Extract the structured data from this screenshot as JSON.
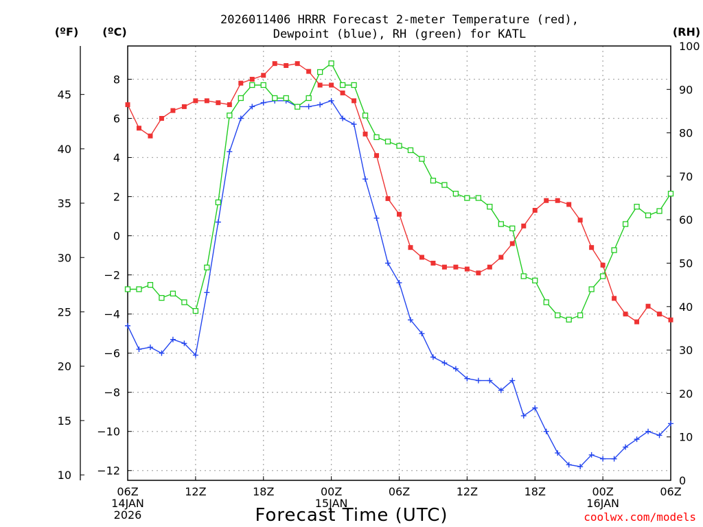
{
  "chart_data": {
    "type": "line",
    "title_lines": [
      "2026011406 HRRR Forecast 2-meter Temperature (red),",
      "Dewpoint (blue), RH (green) for KATL"
    ],
    "xlabel": "Forecast Time (UTC)",
    "credit": "coolwx.com/models",
    "units": {
      "fahrenheit": "(ºF)",
      "celsius": "(ºC)",
      "rh": "(RH)"
    },
    "x_range_hours": [
      0,
      48
    ],
    "x_ticks": [
      {
        "hour": 0,
        "lines": [
          "06Z",
          "14JAN",
          "2026"
        ]
      },
      {
        "hour": 6,
        "lines": [
          "12Z"
        ]
      },
      {
        "hour": 12,
        "lines": [
          "18Z"
        ]
      },
      {
        "hour": 18,
        "lines": [
          "00Z",
          "15JAN"
        ]
      },
      {
        "hour": 24,
        "lines": [
          "06Z"
        ]
      },
      {
        "hour": 30,
        "lines": [
          "12Z"
        ]
      },
      {
        "hour": 36,
        "lines": [
          "18Z"
        ]
      },
      {
        "hour": 42,
        "lines": [
          "00Z",
          "16JAN"
        ]
      },
      {
        "hour": 48,
        "lines": [
          "06Z"
        ]
      }
    ],
    "celsius_axis": {
      "range": [
        -12.5,
        9.7
      ],
      "ticks": [
        "8",
        "6",
        "4",
        "2",
        "0",
        "−2",
        "−4",
        "−6",
        "−8",
        "−10",
        "−12"
      ],
      "tick_values": [
        8,
        6,
        4,
        2,
        0,
        -2,
        -4,
        -6,
        -8,
        -10,
        -12
      ]
    },
    "fahrenheit_axis": {
      "ticks": [
        "45",
        "40",
        "35",
        "30",
        "25",
        "20",
        "15",
        "10"
      ],
      "tick_values": [
        45,
        40,
        35,
        30,
        25,
        20,
        15,
        10
      ]
    },
    "rh_axis": {
      "range": [
        0,
        100
      ],
      "ticks": [
        "100",
        "90",
        "80",
        "70",
        "60",
        "50",
        "40",
        "30",
        "20",
        "10",
        "0"
      ],
      "tick_values": [
        100,
        90,
        80,
        70,
        60,
        50,
        40,
        30,
        20,
        10,
        0
      ]
    },
    "series": [
      {
        "name": "Temperature",
        "axis": "celsius",
        "color": "#ee3333",
        "marker": "filled-square",
        "hours": [
          0,
          1,
          2,
          3,
          4,
          5,
          6,
          7,
          8,
          9,
          10,
          11,
          12,
          13,
          14,
          15,
          16,
          17,
          18,
          19,
          20,
          21,
          22,
          23,
          24,
          25,
          26,
          27,
          28,
          29,
          30,
          31,
          32,
          33,
          34,
          35,
          36,
          37,
          38,
          39,
          40,
          41,
          42,
          43,
          44,
          45,
          46,
          47,
          48
        ],
        "values": [
          6.7,
          5.5,
          5.1,
          6.0,
          6.4,
          6.6,
          6.9,
          6.9,
          6.8,
          6.7,
          7.8,
          8.0,
          8.2,
          8.8,
          8.7,
          8.8,
          8.4,
          7.7,
          7.7,
          7.3,
          6.9,
          5.2,
          4.1,
          1.9,
          1.1,
          -0.6,
          -1.1,
          -1.4,
          -1.6,
          -1.6,
          -1.7,
          -1.9,
          -1.6,
          -1.1,
          -0.4,
          0.5,
          1.3,
          1.8,
          1.8,
          1.6,
          0.8,
          -0.6,
          -1.5,
          -3.2,
          -4.0,
          -4.4,
          -3.6,
          -4.0,
          -4.3
        ]
      },
      {
        "name": "Dewpoint",
        "axis": "celsius",
        "color": "#2244ee",
        "marker": "plus",
        "hours": [
          0,
          1,
          2,
          3,
          4,
          5,
          6,
          7,
          8,
          9,
          10,
          11,
          12,
          13,
          14,
          15,
          16,
          17,
          18,
          19,
          20,
          21,
          22,
          23,
          24,
          25,
          26,
          27,
          28,
          29,
          30,
          31,
          32,
          33,
          34,
          35,
          36,
          37,
          38,
          39,
          40,
          41,
          42,
          43,
          44,
          45,
          46,
          47,
          48
        ],
        "values": [
          -4.6,
          -5.8,
          -5.7,
          -6.0,
          -5.3,
          -5.5,
          -6.1,
          -2.9,
          0.7,
          4.3,
          6.0,
          6.6,
          6.8,
          6.9,
          6.9,
          6.6,
          6.6,
          6.7,
          6.9,
          6.0,
          5.7,
          2.9,
          0.9,
          -1.4,
          -2.4,
          -4.3,
          -5.0,
          -6.2,
          -6.5,
          -6.8,
          -7.3,
          -7.4,
          -7.4,
          -7.9,
          -7.4,
          -9.2,
          -8.8,
          -10.0,
          -11.1,
          -11.7,
          -11.8,
          -11.2,
          -11.4,
          -11.4,
          -10.8,
          -10.4,
          -10.0,
          -10.2,
          -9.6
        ]
      },
      {
        "name": "RH",
        "axis": "rh",
        "color": "#22cc22",
        "marker": "open-square",
        "hours": [
          0,
          1,
          2,
          3,
          4,
          5,
          6,
          7,
          8,
          9,
          10,
          11,
          12,
          13,
          14,
          15,
          16,
          17,
          18,
          19,
          20,
          21,
          22,
          23,
          24,
          25,
          26,
          27,
          28,
          29,
          30,
          31,
          32,
          33,
          34,
          35,
          36,
          37,
          38,
          39,
          40,
          41,
          42,
          43,
          44,
          45,
          46,
          47,
          48
        ],
        "values": [
          44,
          44,
          45,
          42,
          43,
          41,
          39,
          49,
          64,
          84,
          88,
          91,
          91,
          88,
          88,
          86,
          88,
          94,
          96,
          91,
          91,
          84,
          79,
          78,
          77,
          76,
          74,
          69,
          68,
          66,
          65,
          65,
          63,
          59,
          58,
          47,
          46,
          41,
          38,
          37,
          38,
          44,
          47,
          53,
          59,
          63,
          61,
          62,
          66
        ]
      }
    ]
  }
}
